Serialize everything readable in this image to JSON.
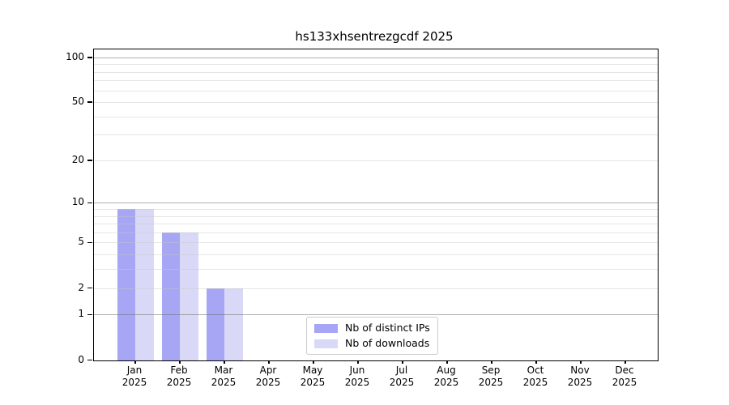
{
  "chart_data": {
    "type": "bar",
    "title": "hs133xhsentrezgcdf 2025",
    "categories": [
      "Jan 2025",
      "Feb 2025",
      "Mar 2025",
      "Apr 2025",
      "May 2025",
      "Jun 2025",
      "Jul 2025",
      "Aug 2025",
      "Sep 2025",
      "Oct 2025",
      "Nov 2025",
      "Dec 2025"
    ],
    "series": [
      {
        "name": "Nb of distinct IPs",
        "color": "#a6a6f4",
        "values": [
          9,
          6,
          2,
          0,
          0,
          0,
          0,
          0,
          0,
          0,
          0,
          0
        ]
      },
      {
        "name": "Nb of downloads",
        "color": "#d9d9f7",
        "values": [
          9,
          6,
          2,
          0,
          0,
          0,
          0,
          0,
          0,
          0,
          0,
          0
        ]
      }
    ],
    "yscale": "log1p",
    "ylim": [
      0,
      113
    ],
    "yticks": [
      0,
      1,
      2,
      5,
      10,
      20,
      50,
      100
    ],
    "major_gridlines": [
      1,
      10,
      100
    ],
    "minor_gridlines": [
      2,
      3,
      4,
      5,
      6,
      7,
      8,
      9,
      20,
      30,
      40,
      50,
      60,
      70,
      80,
      90
    ],
    "grid": true,
    "legend_position": "lower center",
    "colors": {
      "spine": "#000000",
      "major_grid": "#b4b4b4",
      "minor_grid": "#e8e8e8",
      "background": "#ffffff"
    }
  }
}
